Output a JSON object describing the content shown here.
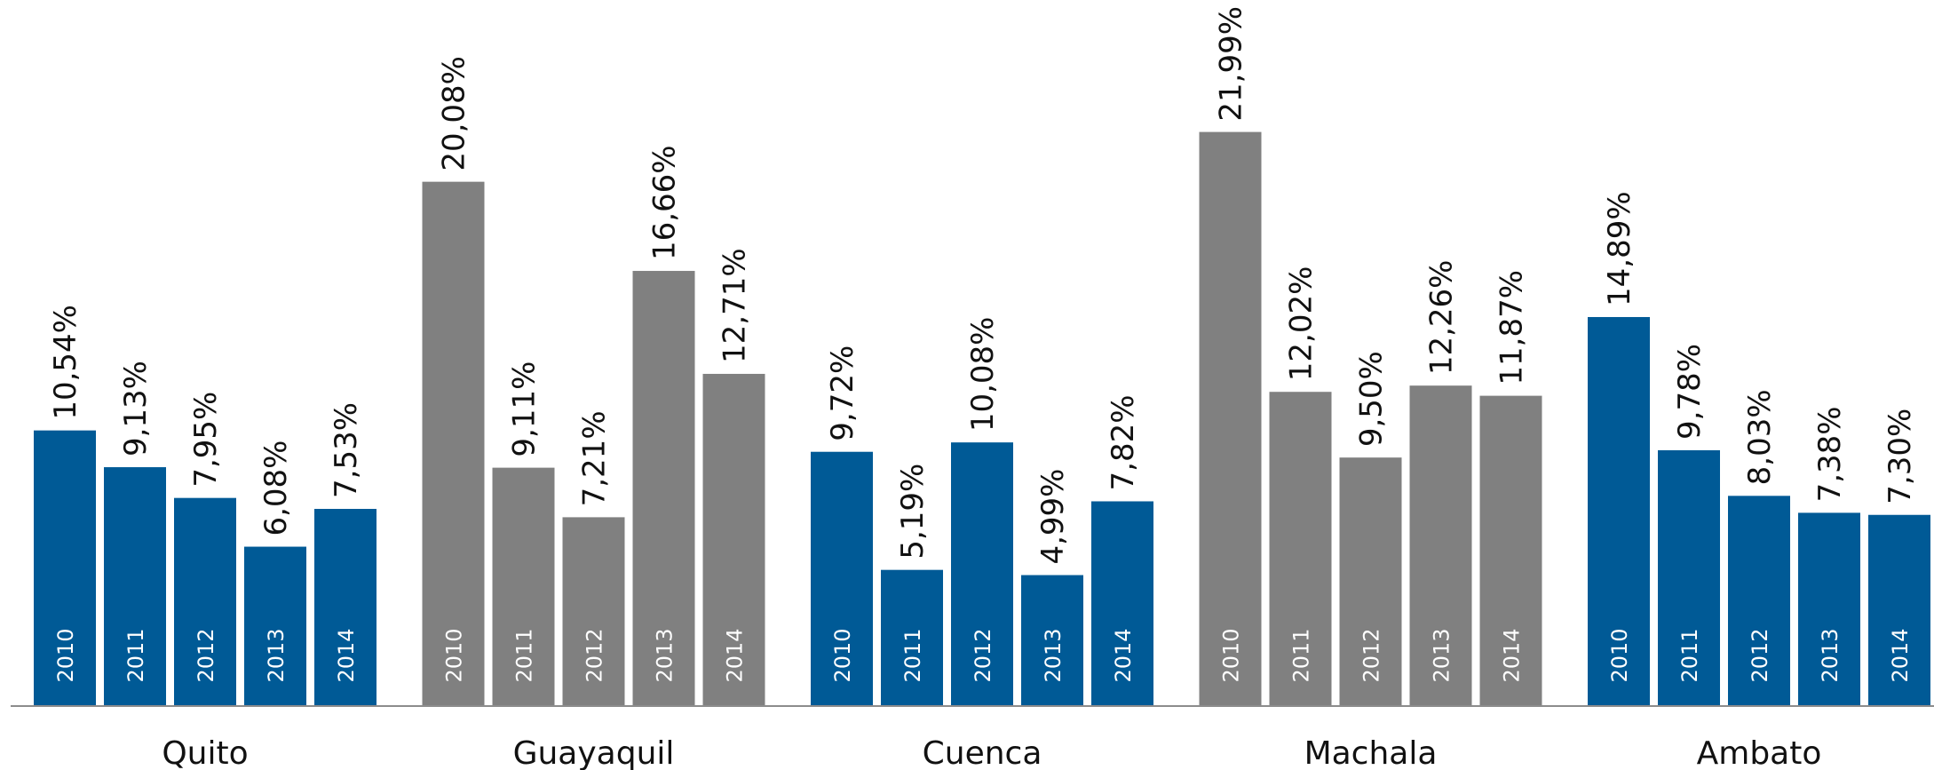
{
  "chart_data": {
    "type": "bar",
    "years": [
      "2010",
      "2011",
      "2012",
      "2013",
      "2014"
    ],
    "groups": [
      {
        "city": "Quito",
        "color": "#005a96",
        "values": [
          10.54,
          9.13,
          7.95,
          6.08,
          7.53
        ],
        "labels": [
          "10,54%",
          "9,13%",
          "7,95%",
          "6,08%",
          "7,53%"
        ]
      },
      {
        "city": "Guayaquil",
        "color": "#808080",
        "values": [
          20.08,
          9.11,
          7.21,
          16.66,
          12.71
        ],
        "labels": [
          "20,08%",
          "9,11%",
          "7,21%",
          "16,66%",
          "12,71%"
        ]
      },
      {
        "city": "Cuenca",
        "color": "#005a96",
        "values": [
          9.72,
          5.19,
          10.08,
          4.99,
          7.82
        ],
        "labels": [
          "9,72%",
          "5,19%",
          "10,08%",
          "4,99%",
          "7,82%"
        ]
      },
      {
        "city": "Machala",
        "color": "#808080",
        "values": [
          21.99,
          12.02,
          9.5,
          12.26,
          11.87
        ],
        "labels": [
          "21,99%",
          "12,02%",
          "9,50%",
          "12,26%",
          "11,87%"
        ]
      },
      {
        "city": "Ambato",
        "color": "#005a96",
        "values": [
          14.89,
          9.78,
          8.03,
          7.38,
          7.3
        ],
        "labels": [
          "14,89%",
          "9,78%",
          "8,03%",
          "7,38%",
          "7,30%"
        ]
      }
    ],
    "ylim": [
      0,
      22
    ],
    "grid": false,
    "title": "",
    "xlabel": "",
    "ylabel": "",
    "baseline_color": "#8c8c8c"
  }
}
